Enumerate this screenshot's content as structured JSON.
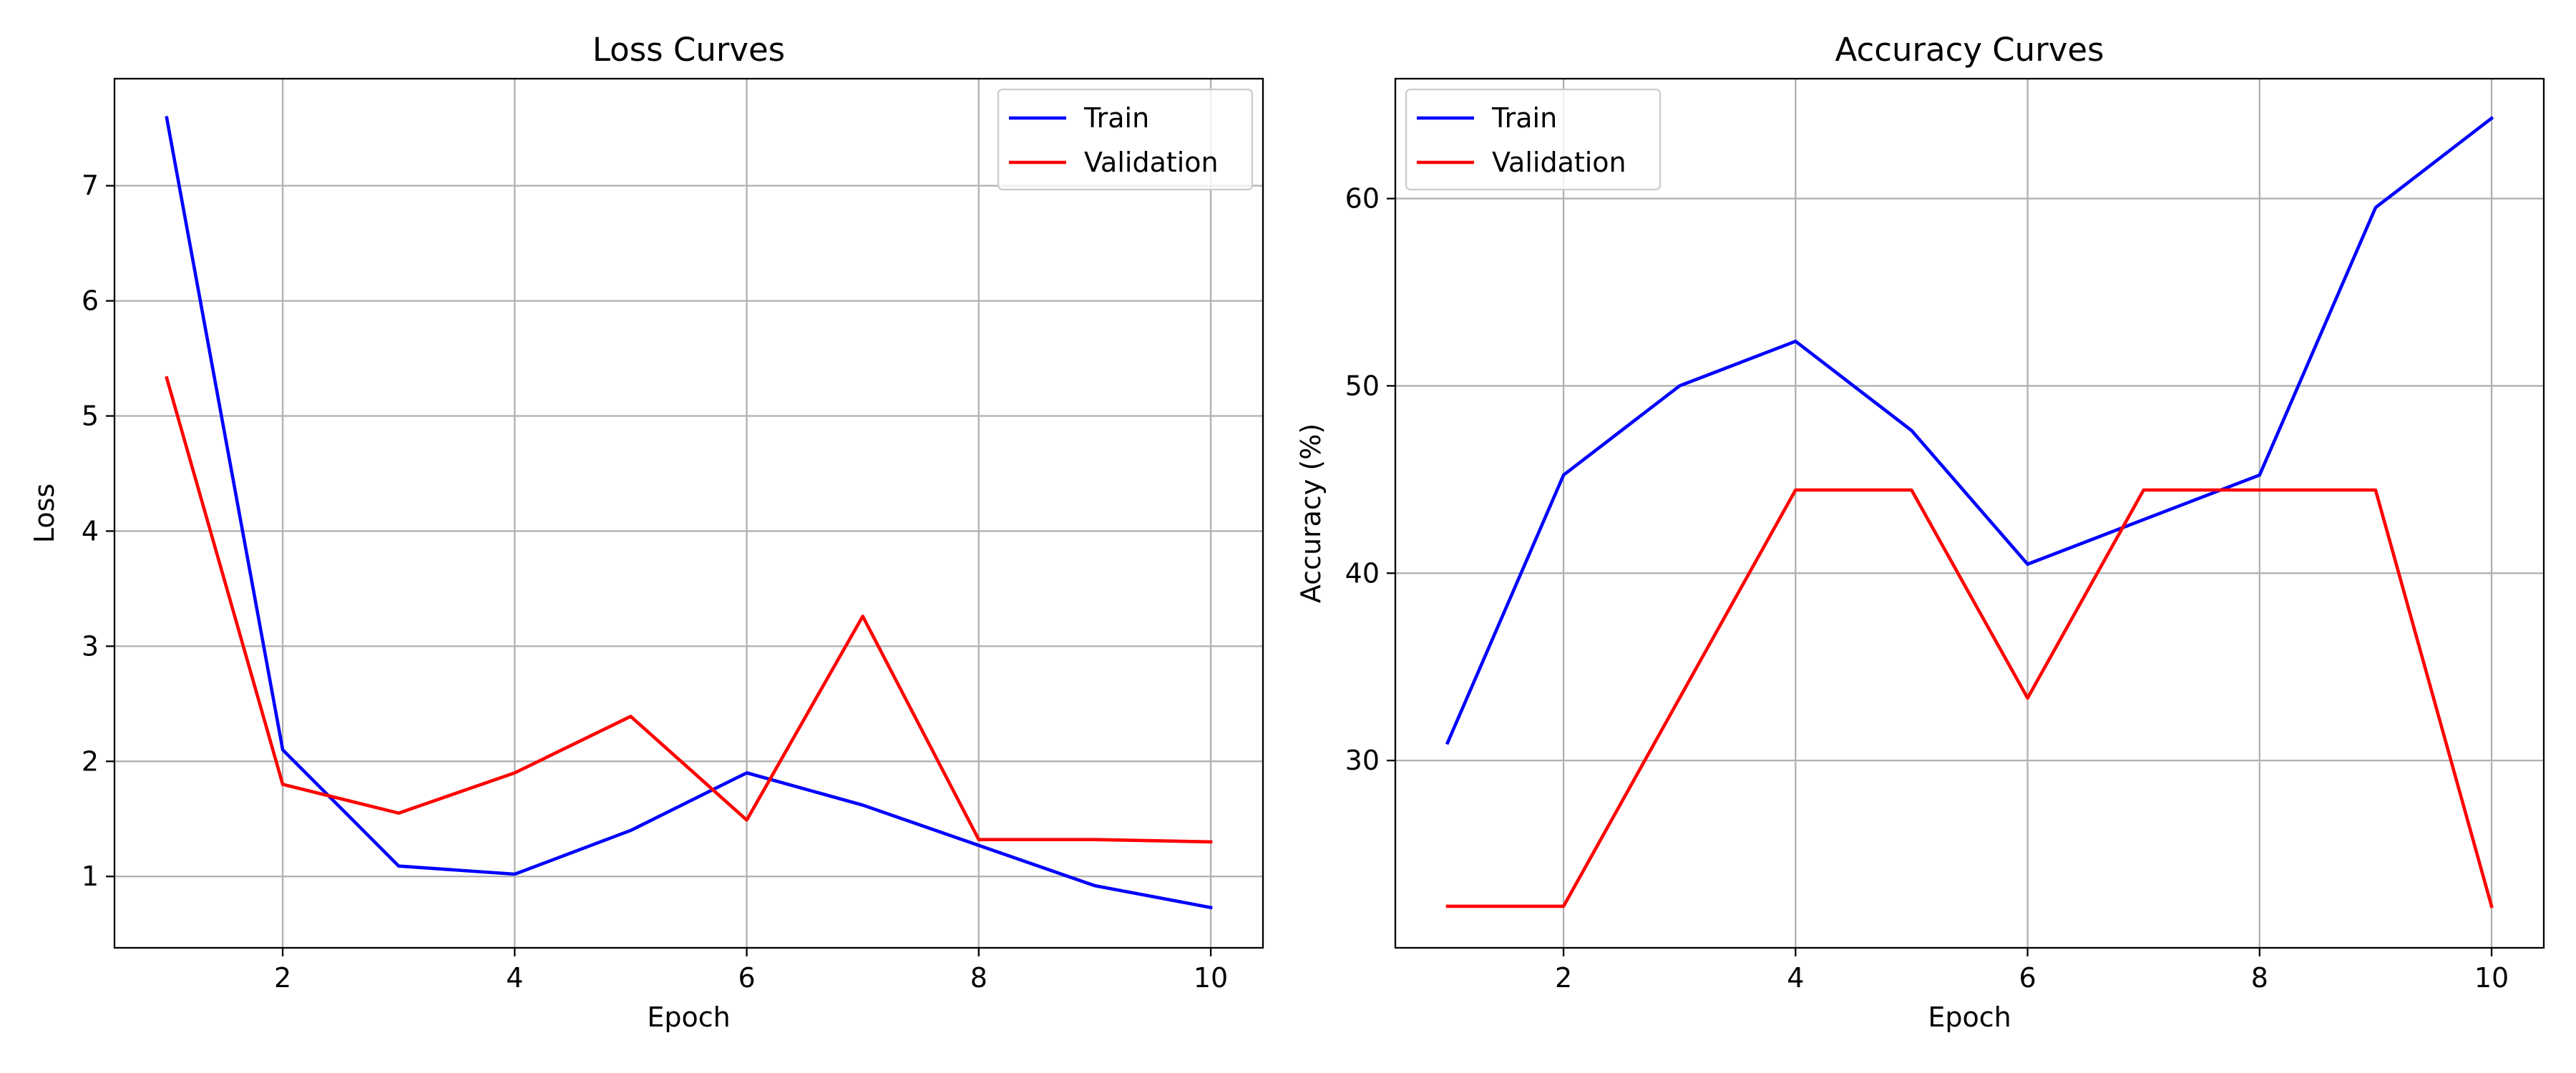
{
  "chart_data": [
    {
      "type": "line",
      "title": "Loss Curves",
      "xlabel": "Epoch",
      "ylabel": "Loss",
      "x": [
        1,
        2,
        3,
        4,
        5,
        6,
        7,
        8,
        9,
        10
      ],
      "xlim": [
        0.55,
        10.45
      ],
      "ylim": [
        0.38,
        7.93
      ],
      "xticks": [
        2,
        4,
        6,
        8,
        10
      ],
      "yticks": [
        1,
        2,
        3,
        4,
        5,
        6,
        7
      ],
      "grid": true,
      "legend_position": "upper right",
      "series": [
        {
          "name": "Train",
          "color": "#0000ff",
          "values": [
            7.59,
            2.1,
            1.09,
            1.02,
            1.4,
            1.9,
            1.62,
            1.27,
            0.92,
            0.73
          ]
        },
        {
          "name": "Validation",
          "color": "#ff0000",
          "values": [
            5.33,
            1.8,
            1.55,
            1.9,
            2.39,
            1.49,
            3.26,
            1.32,
            1.32,
            1.3
          ]
        }
      ]
    },
    {
      "type": "line",
      "title": "Accuracy Curves",
      "xlabel": "Epoch",
      "ylabel": "Accuracy (%)",
      "x": [
        1,
        2,
        3,
        4,
        5,
        6,
        7,
        8,
        9,
        10
      ],
      "xlim": [
        0.55,
        10.45
      ],
      "ylim": [
        20.0,
        66.4
      ],
      "xticks": [
        2,
        4,
        6,
        8,
        10
      ],
      "yticks": [
        30,
        40,
        50,
        60
      ],
      "grid": true,
      "legend_position": "upper left",
      "series": [
        {
          "name": "Train",
          "color": "#0000ff",
          "values": [
            30.95,
            45.24,
            50.0,
            52.38,
            47.62,
            40.48,
            42.86,
            45.24,
            59.52,
            64.29
          ]
        },
        {
          "name": "Validation",
          "color": "#ff0000",
          "values": [
            22.22,
            22.22,
            33.33,
            44.44,
            44.44,
            33.33,
            44.44,
            44.44,
            44.44,
            22.22
          ]
        }
      ]
    }
  ]
}
